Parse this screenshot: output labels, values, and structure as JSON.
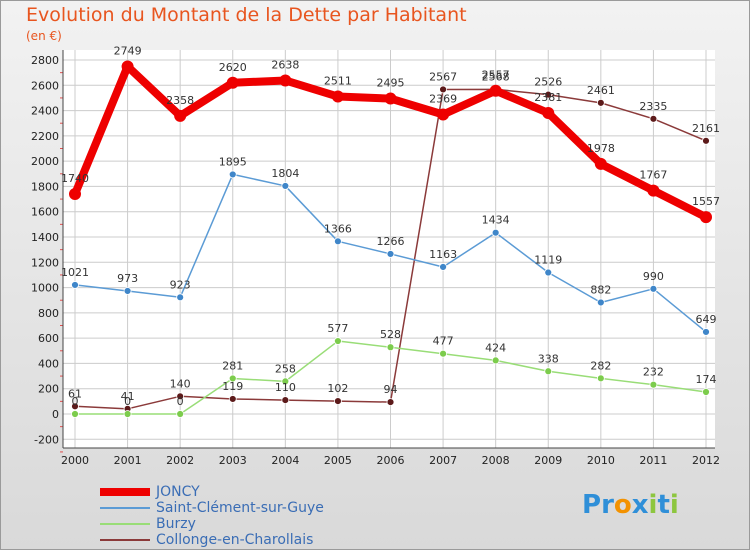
{
  "chart_data": {
    "type": "line",
    "title": "Evolution du Montant de la Dette par Habitant",
    "subtitle": "(en €)",
    "x": [
      "2000",
      "2001",
      "2002",
      "2003",
      "2004",
      "2005",
      "2006",
      "2007",
      "2008",
      "2009",
      "2010",
      "2011",
      "2012"
    ],
    "yticks": [
      -200,
      0,
      200,
      400,
      600,
      800,
      1000,
      1200,
      1400,
      1600,
      1800,
      2000,
      2200,
      2400,
      2600,
      2800
    ],
    "ylim": [
      -200,
      2800
    ],
    "grid": true,
    "legend_position": "bottom-left",
    "series": [
      {
        "name": "JONCY",
        "color": "#ee0000",
        "values": [
          1740,
          2749,
          2358,
          2620,
          2638,
          2511,
          2495,
          2369,
          2557,
          2381,
          1978,
          1767,
          1557
        ]
      },
      {
        "name": "Saint-Clément-sur-Guye",
        "color": "#5b9bd5",
        "values": [
          1021,
          973,
          923,
          1895,
          1804,
          1366,
          1266,
          1163,
          1434,
          1119,
          882,
          990,
          649
        ]
      },
      {
        "name": "Burzy",
        "color": "#99dd77",
        "values": [
          0,
          0,
          0,
          281,
          258,
          577,
          528,
          477,
          424,
          338,
          282,
          232,
          174
        ]
      },
      {
        "name": "Collonge-en-Charollais",
        "color": "#8b3a3a",
        "values": [
          61,
          41,
          140,
          119,
          110,
          102,
          94,
          2567,
          2568,
          2526,
          2461,
          2335,
          2161
        ]
      }
    ]
  },
  "logo": {
    "text": "Proxiti",
    "letters": [
      "P",
      "r",
      "o",
      "x",
      "i",
      "t",
      "i"
    ],
    "colors": [
      "#2f8fd8",
      "#2f8fd8",
      "#f39200",
      "#2f8fd8",
      "#8dc63f",
      "#2f8fd8",
      "#8dc63f"
    ]
  }
}
